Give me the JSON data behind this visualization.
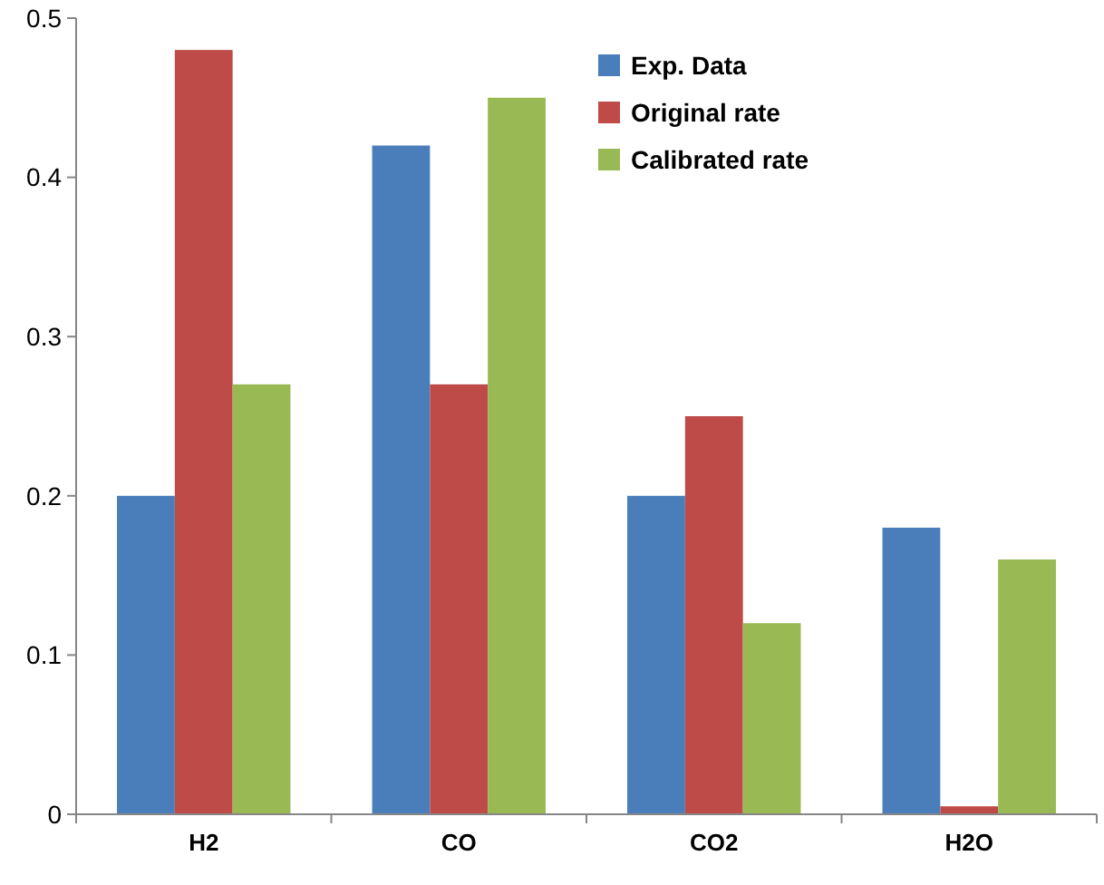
{
  "chart_data": {
    "type": "bar",
    "categories": [
      "H2",
      "CO",
      "CO2",
      "H2O"
    ],
    "series": [
      {
        "name": "Exp. Data",
        "color": "#4a7ebb",
        "values": [
          0.2,
          0.42,
          0.2,
          0.18
        ]
      },
      {
        "name": "Original rate",
        "color": "#be4b48",
        "values": [
          0.48,
          0.27,
          0.25,
          0.005
        ]
      },
      {
        "name": "Calibrated rate",
        "color": "#98b954",
        "values": [
          0.27,
          0.45,
          0.12,
          0.16
        ]
      }
    ],
    "ylim": [
      0,
      0.5
    ],
    "yticks": [
      {
        "value": 0,
        "label": "0"
      },
      0.1,
      0.2,
      0.3,
      0.4,
      0.5
    ],
    "grid": false,
    "legend": "top right"
  }
}
